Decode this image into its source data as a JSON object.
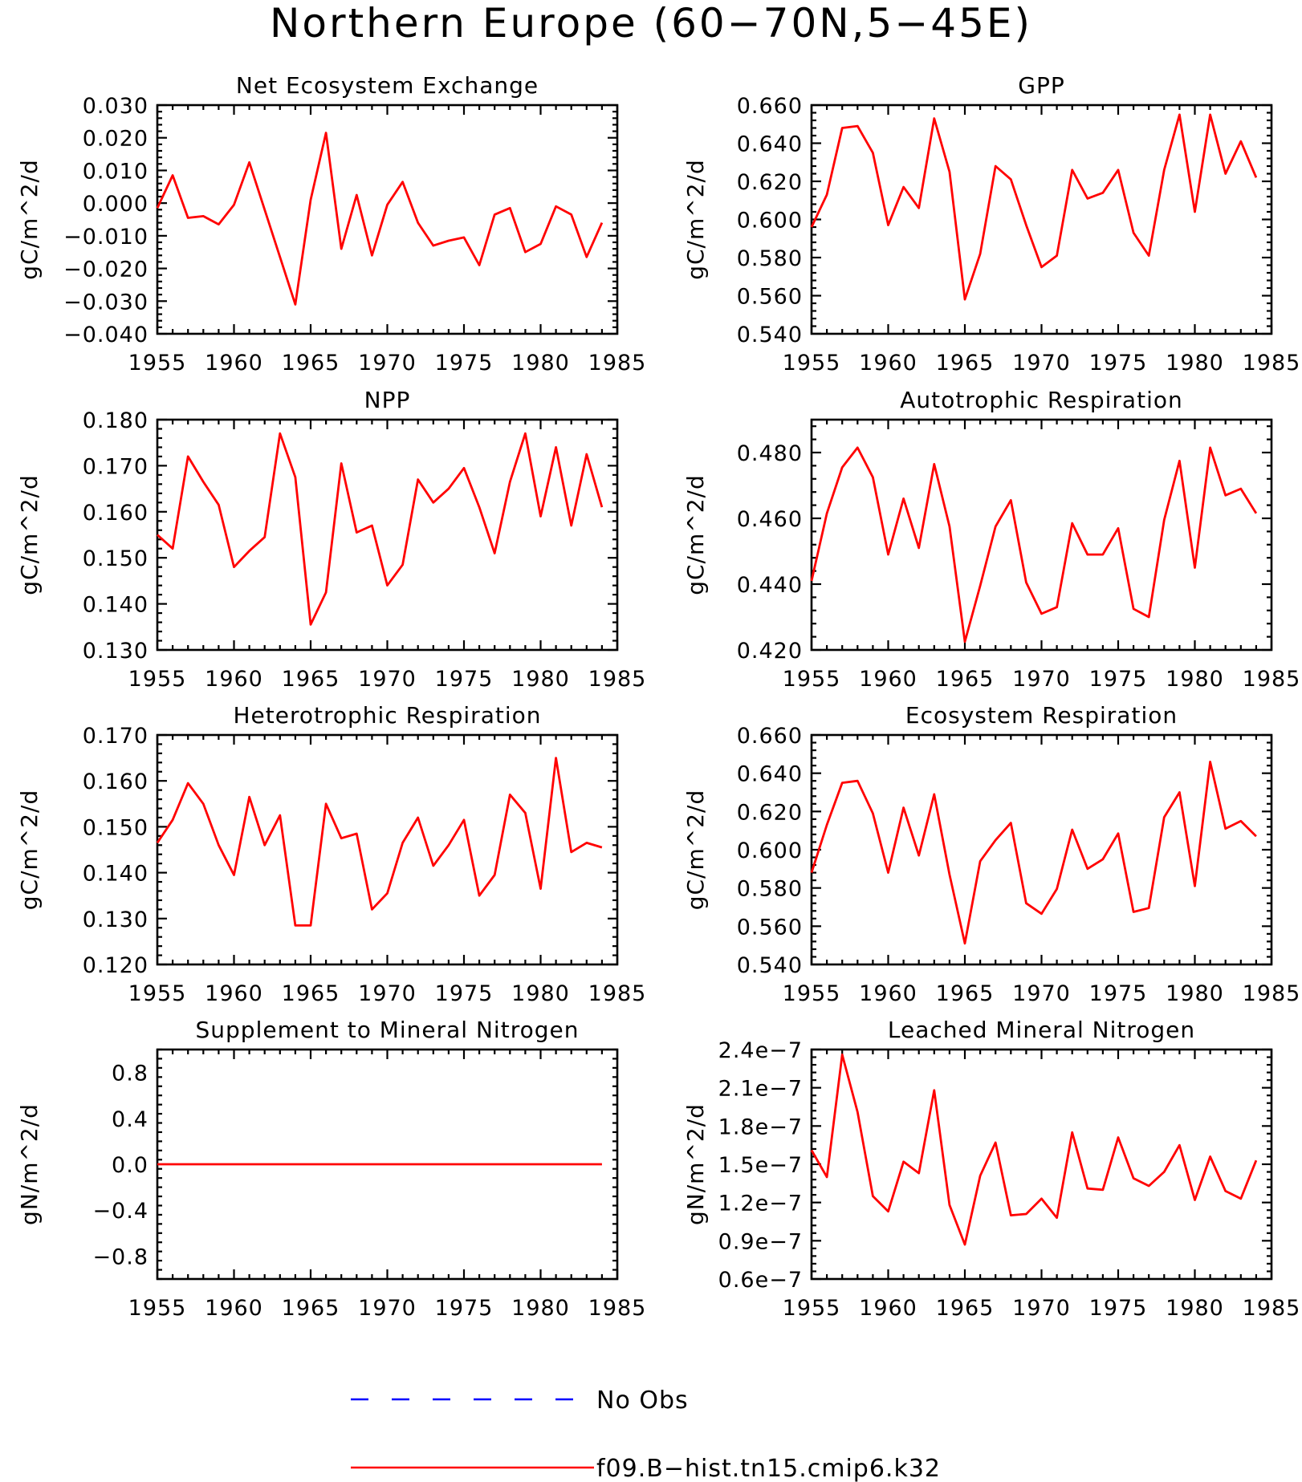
{
  "title": "Northern Europe (60−70N,5−45E)",
  "legend": {
    "entries": [
      {
        "label": "No Obs",
        "color": "#0000ff",
        "dash": "dashed"
      },
      {
        "label": "f09.B−hist.tn15.cmip6.k32",
        "color": "#ff0000",
        "dash": "solid"
      }
    ]
  },
  "chart_data": [
    {
      "type": "line",
      "title": "Net Ecosystem Exchange",
      "ylabel": "gC/m^2/d",
      "xlim": [
        1955,
        1985
      ],
      "ylim": [
        -0.04,
        0.03
      ],
      "xticks": [
        1955,
        1960,
        1965,
        1970,
        1975,
        1980,
        1985
      ],
      "xticklabels": [
        "1955",
        "1960",
        "1965",
        "1970",
        "1975",
        "1980",
        "1985"
      ],
      "yticks": [
        -0.04,
        -0.03,
        -0.02,
        -0.01,
        0.0,
        0.01,
        0.02,
        0.03
      ],
      "yticklabels": [
        "−0.040",
        "−0.030",
        "−0.020",
        "−0.010",
        "0.000",
        "0.010",
        "0.020",
        "0.030"
      ],
      "x": [
        1955,
        1956,
        1957,
        1958,
        1959,
        1960,
        1961,
        1962,
        1963,
        1964,
        1965,
        1966,
        1967,
        1968,
        1969,
        1970,
        1971,
        1972,
        1973,
        1974,
        1975,
        1976,
        1977,
        1978,
        1979,
        1980,
        1981,
        1982,
        1983,
        1984
      ],
      "series": [
        {
          "color": "#ff0000",
          "values": [
            -0.0015,
            0.0085,
            -0.0045,
            -0.004,
            -0.0065,
            -0.0005,
            0.0125,
            -0.002,
            -0.0165,
            -0.031,
            0.001,
            0.0215,
            -0.014,
            0.0025,
            -0.016,
            -0.0005,
            0.0065,
            -0.006,
            -0.013,
            -0.0115,
            -0.0105,
            -0.019,
            -0.0035,
            -0.0015,
            -0.015,
            -0.0125,
            -0.001,
            -0.0035,
            -0.0165,
            -0.006
          ]
        }
      ]
    },
    {
      "type": "line",
      "title": "GPP",
      "ylabel": "gC/m^2/d",
      "xlim": [
        1955,
        1985
      ],
      "ylim": [
        0.54,
        0.66
      ],
      "xticks": [
        1955,
        1960,
        1965,
        1970,
        1975,
        1980,
        1985
      ],
      "xticklabels": [
        "1955",
        "1960",
        "1965",
        "1970",
        "1975",
        "1980",
        "1985"
      ],
      "yticks": [
        0.54,
        0.56,
        0.58,
        0.6,
        0.62,
        0.64,
        0.66
      ],
      "yticklabels": [
        "0.540",
        "0.560",
        "0.580",
        "0.600",
        "0.620",
        "0.640",
        "0.660"
      ],
      "x": [
        1955,
        1956,
        1957,
        1958,
        1959,
        1960,
        1961,
        1962,
        1963,
        1964,
        1965,
        1966,
        1967,
        1968,
        1969,
        1970,
        1971,
        1972,
        1973,
        1974,
        1975,
        1976,
        1977,
        1978,
        1979,
        1980,
        1981,
        1982,
        1983,
        1984
      ],
      "series": [
        {
          "color": "#ff0000",
          "values": [
            0.596,
            0.613,
            0.648,
            0.649,
            0.635,
            0.597,
            0.617,
            0.606,
            0.653,
            0.625,
            0.558,
            0.582,
            0.628,
            0.621,
            0.597,
            0.575,
            0.581,
            0.626,
            0.611,
            0.614,
            0.626,
            0.593,
            0.581,
            0.626,
            0.655,
            0.604,
            0.655,
            0.624,
            0.641,
            0.622
          ]
        }
      ]
    },
    {
      "type": "line",
      "title": "NPP",
      "ylabel": "gC/m^2/d",
      "xlim": [
        1955,
        1985
      ],
      "ylim": [
        0.13,
        0.18
      ],
      "xticks": [
        1955,
        1960,
        1965,
        1970,
        1975,
        1980,
        1985
      ],
      "xticklabels": [
        "1955",
        "1960",
        "1965",
        "1970",
        "1975",
        "1980",
        "1985"
      ],
      "yticks": [
        0.13,
        0.14,
        0.15,
        0.16,
        0.17,
        0.18
      ],
      "yticklabels": [
        "0.130",
        "0.140",
        "0.150",
        "0.160",
        "0.170",
        "0.180"
      ],
      "x": [
        1955,
        1956,
        1957,
        1958,
        1959,
        1960,
        1961,
        1962,
        1963,
        1964,
        1965,
        1966,
        1967,
        1968,
        1969,
        1970,
        1971,
        1972,
        1973,
        1974,
        1975,
        1976,
        1977,
        1978,
        1979,
        1980,
        1981,
        1982,
        1983,
        1984
      ],
      "series": [
        {
          "color": "#ff0000",
          "values": [
            0.155,
            0.152,
            0.172,
            0.1665,
            0.1615,
            0.148,
            0.1515,
            0.1545,
            0.177,
            0.1675,
            0.1355,
            0.1425,
            0.1705,
            0.1555,
            0.157,
            0.144,
            0.1485,
            0.167,
            0.162,
            0.165,
            0.1695,
            0.161,
            0.151,
            0.1665,
            0.177,
            0.159,
            0.174,
            0.157,
            0.1725,
            0.161
          ]
        }
      ]
    },
    {
      "type": "line",
      "title": "Autotrophic Respiration",
      "ylabel": "gC/m^2/d",
      "xlim": [
        1955,
        1985
      ],
      "ylim": [
        0.42,
        0.49
      ],
      "xticks": [
        1955,
        1960,
        1965,
        1970,
        1975,
        1980,
        1985
      ],
      "xticklabels": [
        "1955",
        "1960",
        "1965",
        "1970",
        "1975",
        "1980",
        "1985"
      ],
      "yticks": [
        0.42,
        0.44,
        0.46,
        0.48
      ],
      "yticklabels": [
        "0.420",
        "0.440",
        "0.460",
        "0.480"
      ],
      "x": [
        1955,
        1956,
        1957,
        1958,
        1959,
        1960,
        1961,
        1962,
        1963,
        1964,
        1965,
        1966,
        1967,
        1968,
        1969,
        1970,
        1971,
        1972,
        1973,
        1974,
        1975,
        1976,
        1977,
        1978,
        1979,
        1980,
        1981,
        1982,
        1983,
        1984
      ],
      "series": [
        {
          "color": "#ff0000",
          "values": [
            0.441,
            0.4615,
            0.4755,
            0.4815,
            0.4725,
            0.449,
            0.466,
            0.451,
            0.4765,
            0.4575,
            0.4225,
            0.4395,
            0.4575,
            0.4655,
            0.4405,
            0.431,
            0.433,
            0.4585,
            0.449,
            0.449,
            0.457,
            0.4325,
            0.43,
            0.4595,
            0.4775,
            0.445,
            0.4815,
            0.467,
            0.469,
            0.4615
          ]
        }
      ]
    },
    {
      "type": "line",
      "title": "Heterotrophic Respiration",
      "ylabel": "gC/m^2/d",
      "xlim": [
        1955,
        1985
      ],
      "ylim": [
        0.12,
        0.17
      ],
      "xticks": [
        1955,
        1960,
        1965,
        1970,
        1975,
        1980,
        1985
      ],
      "xticklabels": [
        "1955",
        "1960",
        "1965",
        "1970",
        "1975",
        "1980",
        "1985"
      ],
      "yticks": [
        0.12,
        0.13,
        0.14,
        0.15,
        0.16,
        0.17
      ],
      "yticklabels": [
        "0.120",
        "0.130",
        "0.140",
        "0.150",
        "0.160",
        "0.170"
      ],
      "x": [
        1955,
        1956,
        1957,
        1958,
        1959,
        1960,
        1961,
        1962,
        1963,
        1964,
        1965,
        1966,
        1967,
        1968,
        1969,
        1970,
        1971,
        1972,
        1973,
        1974,
        1975,
        1976,
        1977,
        1978,
        1979,
        1980,
        1981,
        1982,
        1983,
        1984
      ],
      "series": [
        {
          "color": "#ff0000",
          "values": [
            0.1465,
            0.1515,
            0.1595,
            0.155,
            0.146,
            0.1395,
            0.1565,
            0.146,
            0.1525,
            0.1285,
            0.1285,
            0.155,
            0.1475,
            0.1485,
            0.132,
            0.1355,
            0.1465,
            0.152,
            0.1415,
            0.146,
            0.1515,
            0.135,
            0.1395,
            0.157,
            0.153,
            0.1365,
            0.165,
            0.1445,
            0.1465,
            0.1455
          ]
        }
      ]
    },
    {
      "type": "line",
      "title": "Ecosystem Respiration",
      "ylabel": "gC/m^2/d",
      "xlim": [
        1955,
        1985
      ],
      "ylim": [
        0.54,
        0.66
      ],
      "xticks": [
        1955,
        1960,
        1965,
        1970,
        1975,
        1980,
        1985
      ],
      "xticklabels": [
        "1955",
        "1960",
        "1965",
        "1970",
        "1975",
        "1980",
        "1985"
      ],
      "yticks": [
        0.54,
        0.56,
        0.58,
        0.6,
        0.62,
        0.64,
        0.66
      ],
      "yticklabels": [
        "0.540",
        "0.560",
        "0.580",
        "0.600",
        "0.620",
        "0.640",
        "0.660"
      ],
      "x": [
        1955,
        1956,
        1957,
        1958,
        1959,
        1960,
        1961,
        1962,
        1963,
        1964,
        1965,
        1966,
        1967,
        1968,
        1969,
        1970,
        1971,
        1972,
        1973,
        1974,
        1975,
        1976,
        1977,
        1978,
        1979,
        1980,
        1981,
        1982,
        1983,
        1984
      ],
      "series": [
        {
          "color": "#ff0000",
          "values": [
            0.588,
            0.613,
            0.635,
            0.636,
            0.619,
            0.588,
            0.622,
            0.597,
            0.629,
            0.587,
            0.551,
            0.594,
            0.605,
            0.614,
            0.572,
            0.5665,
            0.5795,
            0.6105,
            0.59,
            0.595,
            0.6085,
            0.5675,
            0.5695,
            0.617,
            0.63,
            0.581,
            0.646,
            0.611,
            0.615,
            0.607
          ]
        }
      ]
    },
    {
      "type": "line",
      "title": "Supplement to Mineral Nitrogen",
      "ylabel": "gN/m^2/d",
      "xlim": [
        1955,
        1985
      ],
      "ylim": [
        -1.0,
        1.0
      ],
      "xticks": [
        1955,
        1960,
        1965,
        1970,
        1975,
        1980,
        1985
      ],
      "xticklabels": [
        "1955",
        "1960",
        "1965",
        "1970",
        "1975",
        "1980",
        "1985"
      ],
      "yticks": [
        -0.8,
        -0.4,
        0.0,
        0.4,
        0.8
      ],
      "yticklabels": [
        "−0.8",
        "−0.4",
        "0.0",
        "0.4",
        "0.8"
      ],
      "x": [
        1955,
        1956,
        1957,
        1958,
        1959,
        1960,
        1961,
        1962,
        1963,
        1964,
        1965,
        1966,
        1967,
        1968,
        1969,
        1970,
        1971,
        1972,
        1973,
        1974,
        1975,
        1976,
        1977,
        1978,
        1979,
        1980,
        1981,
        1982,
        1983,
        1984
      ],
      "series": [
        {
          "color": "#ff0000",
          "values": [
            0,
            0,
            0,
            0,
            0,
            0,
            0,
            0,
            0,
            0,
            0,
            0,
            0,
            0,
            0,
            0,
            0,
            0,
            0,
            0,
            0,
            0,
            0,
            0,
            0,
            0,
            0,
            0,
            0,
            0
          ]
        }
      ]
    },
    {
      "type": "line",
      "title": "Leached Mineral Nitrogen",
      "ylabel": "gN/m^2/d",
      "xlim": [
        1955,
        1985
      ],
      "ylim": [
        6e-08,
        2.4e-07
      ],
      "xticks": [
        1955,
        1960,
        1965,
        1970,
        1975,
        1980,
        1985
      ],
      "xticklabels": [
        "1955",
        "1960",
        "1965",
        "1970",
        "1975",
        "1980",
        "1985"
      ],
      "yticks": [
        6e-08,
        9e-08,
        1.2e-07,
        1.5e-07,
        1.8e-07,
        2.1e-07,
        2.4e-07
      ],
      "yticklabels": [
        "0.6e−7",
        "0.9e−7",
        "1.2e−7",
        "1.5e−7",
        "1.8e−7",
        "2.1e−7",
        "2.4e−7"
      ],
      "x": [
        1955,
        1956,
        1957,
        1958,
        1959,
        1960,
        1961,
        1962,
        1963,
        1964,
        1965,
        1966,
        1967,
        1968,
        1969,
        1970,
        1971,
        1972,
        1973,
        1974,
        1975,
        1976,
        1977,
        1978,
        1979,
        1980,
        1981,
        1982,
        1983,
        1984
      ],
      "series": [
        {
          "color": "#ff0000",
          "values": [
            1.61e-07,
            1.4e-07,
            2.36e-07,
            1.91e-07,
            1.25e-07,
            1.13e-07,
            1.52e-07,
            1.43e-07,
            2.08e-07,
            1.18e-07,
            8.7e-08,
            1.41e-07,
            1.67e-07,
            1.1e-07,
            1.11e-07,
            1.23e-07,
            1.08e-07,
            1.75e-07,
            1.31e-07,
            1.3e-07,
            1.71e-07,
            1.39e-07,
            1.33e-07,
            1.44e-07,
            1.65e-07,
            1.22e-07,
            1.56e-07,
            1.29e-07,
            1.23e-07,
            1.53e-07
          ]
        }
      ]
    }
  ]
}
